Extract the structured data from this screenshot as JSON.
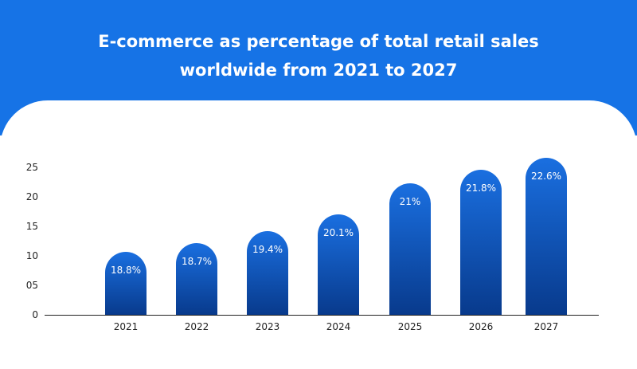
{
  "colors": {
    "header": "#1673e6",
    "bar_top": "#1a6fe0",
    "bar_bottom": "#083a8c",
    "axis": "#222222",
    "text": "#222222",
    "label_text": "#ffffff"
  },
  "chart_data": {
    "type": "bar",
    "title_lines": [
      "E-commerce as percentage of total retail sales",
      "worldwide from 2021 to 2027"
    ],
    "categories": [
      "2021",
      "2022",
      "2023",
      "2024",
      "2025",
      "2026",
      "2027"
    ],
    "values": [
      18.8,
      18.7,
      19.4,
      20.1,
      21,
      21.8,
      22.6
    ],
    "data_labels": [
      "18.8%",
      "18.7%",
      "19.4%",
      "20.1%",
      "21%",
      "21.8%",
      "22.6%"
    ],
    "y_ticks": [
      "0",
      "05",
      "10",
      "15",
      "20",
      "25"
    ],
    "ylim": [
      0,
      25
    ],
    "xlabel": "",
    "ylabel": "",
    "grid": false,
    "legend": "none"
  }
}
